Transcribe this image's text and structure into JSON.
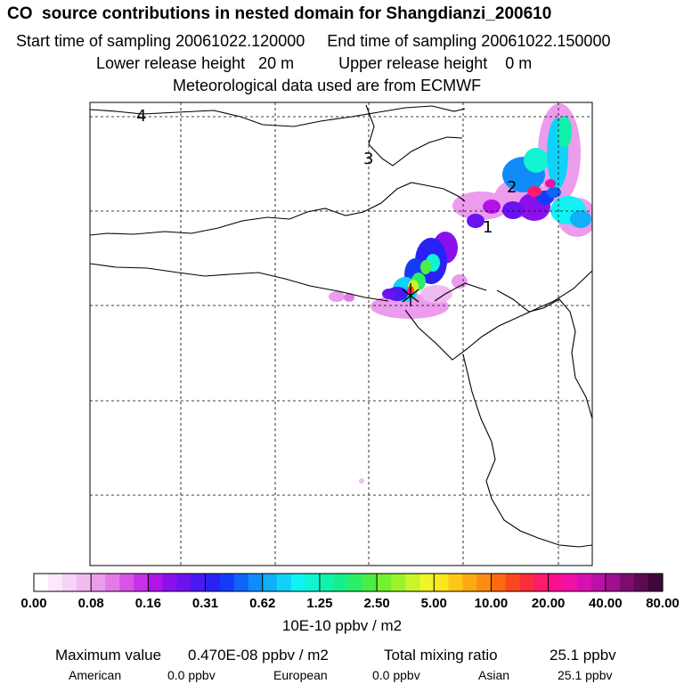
{
  "header": {
    "title": "CO  source contributions in nested domain for Shangdianzi_200610",
    "line2": "Start time of sampling 20061022.120000     End time of sampling 20061022.150000",
    "line3": "Lower release height   20 m          Upper release height    0 m",
    "line4": "Meteorological data used are from ECMWF"
  },
  "chart_data": {
    "type": "heatmap",
    "title": "CO  source contributions in nested domain for Shangdianzi_200610",
    "grid": true,
    "contour_labels": [
      "1",
      "2",
      "3",
      "4"
    ],
    "colorbar": {
      "ticks": [
        "0.00",
        "0.08",
        "0.16",
        "0.31",
        "0.62",
        "1.25",
        "2.50",
        "5.00",
        "10.00",
        "20.00",
        "40.00",
        "80.00"
      ],
      "unit": "10E-10 ppbv / m2",
      "colors": [
        "#ffffff",
        "#fbe8fb",
        "#f6d2f6",
        "#f1bbf1",
        "#ec9cec",
        "#e37ae6",
        "#d754e6",
        "#c930e8",
        "#b213ea",
        "#8c10ec",
        "#6a12f0",
        "#4a18f2",
        "#2a22f5",
        "#143cf8",
        "#1064f8",
        "#108cf8",
        "#10b0f8",
        "#10d2f8",
        "#10f2f4",
        "#10f4d2",
        "#10f2ac",
        "#16f08a",
        "#2cee66",
        "#4cee44",
        "#74f030",
        "#9cf22a",
        "#c8f42a",
        "#f0f428",
        "#fce61e",
        "#fcc816",
        "#fcaa12",
        "#fc8c10",
        "#fc6a10",
        "#fc4820",
        "#fc2c3c",
        "#fc1c6a",
        "#fc1090",
        "#f010a8",
        "#d810b0",
        "#bc10a8",
        "#a0108e",
        "#7c0c6e",
        "#5c0a52",
        "#3e0838"
      ]
    },
    "stats": {
      "maximum_label": "Maximum value",
      "maximum_value": "0.470E-08 ppbv / m2",
      "total_label": "Total mixing ratio",
      "total_value": "25.1 ppbv",
      "american_label": "American",
      "american_value": "0.0 ppbv",
      "european_label": "European",
      "european_value": "0.0 ppbv",
      "asian_label": "Asian",
      "asian_value": "25.1 ppbv"
    }
  }
}
